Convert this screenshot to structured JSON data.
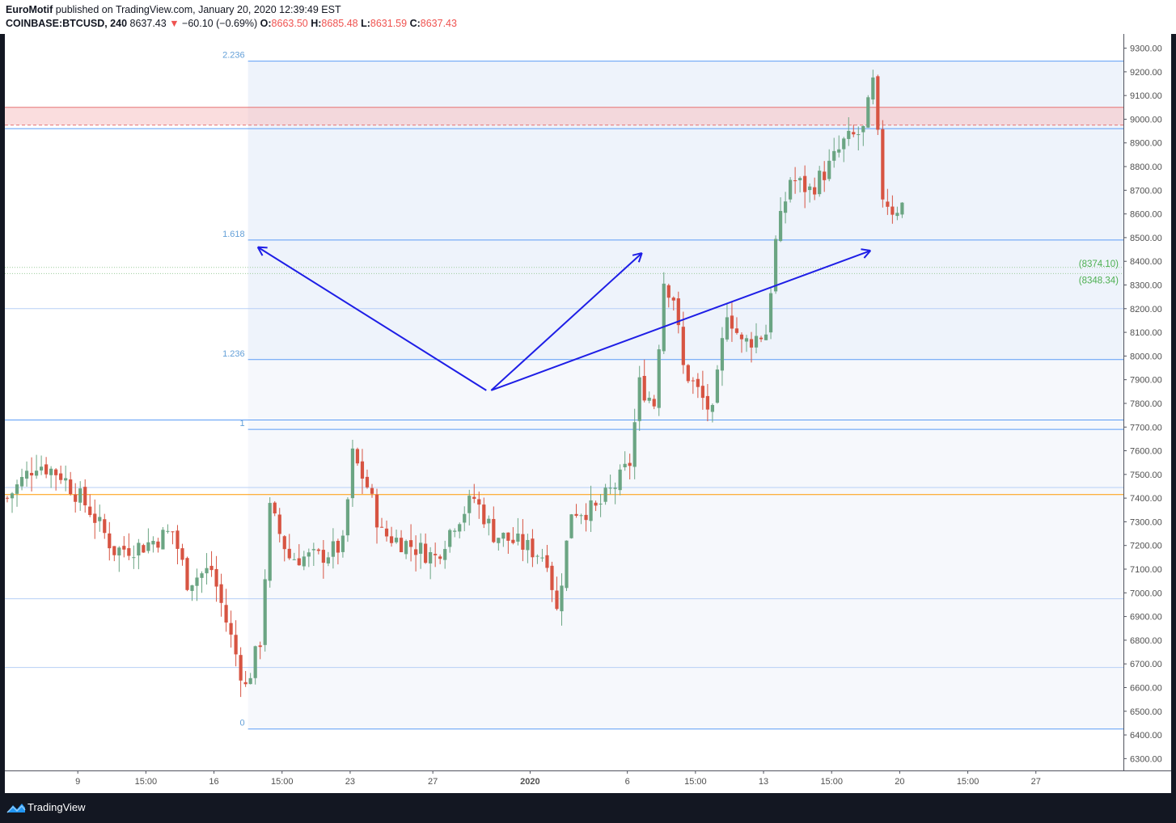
{
  "header": {
    "author": "EuroMotif",
    "published_text": " published on TradingView.com, January 20, 2020 12:39:49 EST",
    "symbol": "COINBASE:BTCUSD, 240",
    "last_price": "8637.43",
    "change_arrow": "▼",
    "change": "−60.10 (−0.69%)",
    "o_label": "O:",
    "o_value": "8663.50",
    "h_label": "H:",
    "h_value": "8685.48",
    "l_label": "L:",
    "l_value": "8631.59",
    "c_label": "C:",
    "c_value": "8637.43"
  },
  "footer": {
    "brand": "TradingView"
  },
  "colors": {
    "up": "#6ba583",
    "down": "#d75442",
    "fib_line": "#5b9cf6",
    "arrow": "#1e1ee6",
    "zone": "#f7c6c8",
    "orange_line": "#ff9800",
    "label_green": "#4caf50"
  },
  "chart_data": {
    "type": "candlestick",
    "y_axis": {
      "range": [
        6250,
        9360
      ],
      "ticks": [
        "9300.00",
        "9200.00",
        "9100.00",
        "9000.00",
        "8900.00",
        "8800.00",
        "8700.00",
        "8600.00",
        "8500.00",
        "8400.00",
        "8300.00",
        "8200.00",
        "8100.00",
        "8000.00",
        "7900.00",
        "7800.00",
        "7700.00",
        "7600.00",
        "7500.00",
        "7400.00",
        "7300.00",
        "7200.00",
        "7100.00",
        "7000.00",
        "6900.00",
        "6800.00",
        "6700.00",
        "6600.00",
        "6500.00",
        "6400.00",
        "6300.00"
      ],
      "tick_values": [
        9300,
        9200,
        9100,
        9000,
        8900,
        8800,
        8700,
        8600,
        8500,
        8400,
        8300,
        8200,
        8100,
        8000,
        7900,
        7800,
        7700,
        7600,
        7500,
        7400,
        7300,
        7200,
        7100,
        7000,
        6900,
        6800,
        6700,
        6600,
        6500,
        6400,
        6300
      ]
    },
    "x_axis": {
      "unit": "4h bars",
      "range": [
        0,
        230
      ],
      "ticks": [
        {
          "label": "9",
          "bar": 15
        },
        {
          "label": "15:00",
          "bar": 29
        },
        {
          "label": "16",
          "bar": 43
        },
        {
          "label": "15:00",
          "bar": 57
        },
        {
          "label": "23",
          "bar": 71
        },
        {
          "label": "27",
          "bar": 88
        },
        {
          "label": "2020",
          "bar": 108
        },
        {
          "label": "6",
          "bar": 128
        },
        {
          "label": "15:00",
          "bar": 142
        },
        {
          "label": "13",
          "bar": 156
        },
        {
          "label": "15:00",
          "bar": 170
        },
        {
          "label": "20",
          "bar": 184
        },
        {
          "label": "15:00",
          "bar": 198
        },
        {
          "label": "27",
          "bar": 212
        }
      ]
    },
    "fib_levels": [
      {
        "label": "2.236",
        "price": 9245
      },
      {
        "label": "1.618",
        "price": 8490
      },
      {
        "label": "1.236",
        "price": 7985
      },
      {
        "label": "1",
        "price": 7690
      },
      {
        "label": "0",
        "price": 6425
      }
    ],
    "fib_start_bar": 50,
    "horizontal_lines": [
      {
        "price": 8960,
        "color": "#5b9cf6"
      },
      {
        "price": 8200,
        "color": "#b7cff6"
      },
      {
        "price": 7730,
        "color": "#5b9cf6"
      },
      {
        "price": 7445,
        "color": "#b7cff6"
      },
      {
        "price": 7415,
        "color": "#ff9800"
      },
      {
        "price": 6975,
        "color": "#b7cff6"
      },
      {
        "price": 6685,
        "color": "#b7cff6"
      }
    ],
    "resistance_zone": {
      "top": 9050,
      "bottom": 8975
    },
    "price_labels": [
      {
        "text": "(8374.10)",
        "price": 8374.1
      },
      {
        "text": "(8348.34)",
        "price": 8348.34
      }
    ],
    "arrows": [
      {
        "from": [
          99,
          7855
        ],
        "to": [
          52,
          8460
        ]
      },
      {
        "from": [
          100,
          7855
        ],
        "to": [
          131,
          8435
        ]
      },
      {
        "from": [
          100,
          7855
        ],
        "to": [
          178,
          8445
        ]
      }
    ],
    "anchors": [
      {
        "bar": 0,
        "price": 7400
      },
      {
        "bar": 6,
        "price": 7550
      },
      {
        "bar": 11,
        "price": 7500
      },
      {
        "bar": 17,
        "price": 7350
      },
      {
        "bar": 22,
        "price": 7180
      },
      {
        "bar": 28,
        "price": 7200
      },
      {
        "bar": 34,
        "price": 7260
      },
      {
        "bar": 37,
        "price": 7050
      },
      {
        "bar": 42,
        "price": 7100
      },
      {
        "bar": 45,
        "price": 6880
      },
      {
        "bar": 49,
        "price": 6600
      },
      {
        "bar": 52,
        "price": 6800
      },
      {
        "bar": 54,
        "price": 7350
      },
      {
        "bar": 58,
        "price": 7150
      },
      {
        "bar": 64,
        "price": 7150
      },
      {
        "bar": 69,
        "price": 7200
      },
      {
        "bar": 71,
        "price": 7580
      },
      {
        "bar": 74,
        "price": 7450
      },
      {
        "bar": 77,
        "price": 7250
      },
      {
        "bar": 83,
        "price": 7200
      },
      {
        "bar": 88,
        "price": 7150
      },
      {
        "bar": 92,
        "price": 7300
      },
      {
        "bar": 96,
        "price": 7400
      },
      {
        "bar": 100,
        "price": 7250
      },
      {
        "bar": 106,
        "price": 7200
      },
      {
        "bar": 111,
        "price": 7150
      },
      {
        "bar": 113,
        "price": 6920
      },
      {
        "bar": 116,
        "price": 7350
      },
      {
        "bar": 121,
        "price": 7350
      },
      {
        "bar": 126,
        "price": 7480
      },
      {
        "bar": 128,
        "price": 7550
      },
      {
        "bar": 130,
        "price": 7880
      },
      {
        "bar": 133,
        "price": 7800
      },
      {
        "bar": 135,
        "price": 8320
      },
      {
        "bar": 137,
        "price": 8250
      },
      {
        "bar": 139,
        "price": 7950
      },
      {
        "bar": 142,
        "price": 7850
      },
      {
        "bar": 145,
        "price": 7750
      },
      {
        "bar": 148,
        "price": 8200
      },
      {
        "bar": 151,
        "price": 8050
      },
      {
        "bar": 156,
        "price": 8100
      },
      {
        "bar": 158,
        "price": 8480
      },
      {
        "bar": 161,
        "price": 8750
      },
      {
        "bar": 165,
        "price": 8700
      },
      {
        "bar": 169,
        "price": 8800
      },
      {
        "bar": 172,
        "price": 8900
      },
      {
        "bar": 176,
        "price": 8950
      },
      {
        "bar": 178,
        "price": 9150
      },
      {
        "bar": 180,
        "price": 8680
      },
      {
        "bar": 182,
        "price": 8620
      },
      {
        "bar": 184,
        "price": 8637
      }
    ]
  }
}
